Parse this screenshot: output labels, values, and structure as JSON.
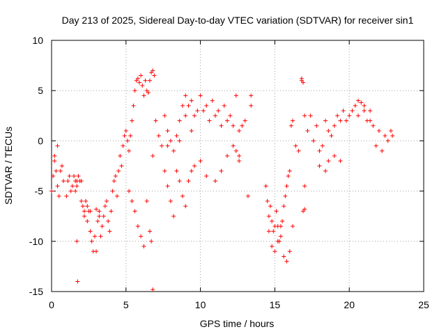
{
  "chart_data": {
    "type": "scatter",
    "title": "Day 213 of 2025, Sidereal Day-to-day VTEC variation (SDTVAR) for receiver sin1",
    "xlabel": "GPS time / hours",
    "ylabel": "SDTVAR / TECUs",
    "xlim": [
      0,
      25
    ],
    "ylim": [
      -15,
      10
    ],
    "xticks": [
      "0",
      "5",
      "10",
      "15",
      "20",
      "25"
    ],
    "yticks": [
      "-15",
      "-10",
      "-5",
      "0",
      "5",
      "10"
    ],
    "grid": true,
    "marker": "plus",
    "colors": {
      "marker": "#ff0000",
      "grid": "#a0a0a0",
      "axis": "#000000"
    },
    "series": [
      {
        "name": "sin1",
        "x": [
          0.0,
          0.1,
          0.2,
          0.3,
          0.4,
          0.5,
          0.6,
          0.7,
          0.8,
          1.0,
          1.1,
          1.2,
          1.3,
          1.4,
          1.5,
          1.6,
          1.7,
          1.8,
          1.9,
          2.0,
          2.1,
          2.2,
          2.3,
          2.4,
          2.5,
          2.6,
          2.7,
          2.8,
          2.9,
          3.0,
          3.1,
          3.2,
          3.3,
          3.4,
          3.5,
          3.6,
          3.7,
          3.8,
          3.9,
          4.0,
          4.1,
          4.2,
          4.3,
          4.4,
          4.5,
          4.6,
          4.7,
          4.8,
          4.9,
          5.0,
          5.1,
          5.2,
          5.3,
          5.4,
          5.5,
          5.6,
          5.7,
          5.8,
          5.9,
          6.0,
          6.1,
          6.2,
          6.3,
          6.4,
          6.5,
          6.6,
          6.7,
          6.8,
          6.9,
          7.0,
          7.2,
          7.4,
          7.6,
          7.8,
          8.0,
          8.2,
          8.4,
          8.6,
          8.8,
          9.0,
          9.2,
          9.4,
          9.6,
          9.8,
          10.0,
          10.2,
          10.4,
          10.6,
          10.8,
          11.0,
          11.2,
          11.4,
          11.6,
          11.8,
          12.0,
          12.2,
          12.4,
          12.6,
          12.8,
          13.0,
          13.4,
          14.4,
          14.5,
          14.6,
          14.7,
          14.8,
          14.9,
          15.0,
          15.1,
          15.2,
          15.3,
          15.4,
          15.5,
          15.6,
          15.7,
          15.8,
          15.9,
          16.0,
          16.1,
          16.2,
          16.4,
          16.6,
          16.8,
          16.9,
          17.0,
          17.2,
          17.4,
          17.6,
          17.8,
          18.0,
          18.2,
          18.4,
          18.6,
          18.8,
          19.0,
          19.2,
          19.4,
          19.6,
          19.8,
          20.0,
          20.2,
          20.4,
          20.6,
          20.8,
          21.0,
          21.2,
          21.4,
          21.6,
          21.8,
          22.0,
          22.2,
          22.4,
          22.6,
          22.8,
          22.9,
          0.2,
          0.4,
          1.6,
          1.7,
          2.0,
          2.2,
          2.4,
          2.6,
          3.0,
          3.2,
          5.2,
          5.4,
          5.6,
          5.8,
          6.0,
          6.2,
          6.4,
          6.6,
          6.7,
          6.8,
          7.6,
          7.8,
          8.0,
          8.2,
          8.4,
          8.6,
          8.8,
          9.0,
          9.2,
          9.4,
          9.6,
          10.0,
          10.4,
          11.0,
          11.4,
          11.8,
          12.2,
          12.6,
          13.2,
          13.4,
          14.6,
          14.8,
          15.0,
          15.2,
          15.4,
          15.6,
          15.8,
          16.0,
          16.2,
          16.8,
          16.9,
          17.0,
          18.0,
          18.4,
          18.6,
          19.0,
          19.4,
          20.6,
          21.0,
          21.4,
          1.7,
          1.75,
          6.8,
          17.0,
          12.4,
          12.6,
          9.0,
          9.4,
          8.6,
          7.8
        ],
        "y": [
          -5.0,
          -3.5,
          -2.0,
          -3.0,
          -4.5,
          -5.5,
          -3.0,
          -2.5,
          -4.0,
          -5.5,
          -4.0,
          -3.5,
          -5.0,
          -4.5,
          -3.5,
          -4.0,
          -4.5,
          -3.5,
          -4.0,
          -4.0,
          -6.5,
          -7.5,
          -6.0,
          -8.0,
          -7.0,
          -9.0,
          -10.0,
          -11.0,
          -9.5,
          -11.0,
          -8.0,
          -7.0,
          -9.5,
          -8.5,
          -7.5,
          -6.5,
          -6.0,
          -8.0,
          -9.0,
          -7.0,
          -5.0,
          -4.0,
          -3.5,
          -5.5,
          -3.0,
          -1.5,
          -2.5,
          -0.5,
          0.5,
          1.0,
          0.0,
          -1.0,
          0.5,
          2.0,
          3.5,
          5.0,
          6.0,
          6.2,
          5.8,
          6.5,
          5.5,
          4.5,
          6.0,
          5.0,
          4.8,
          6.0,
          6.8,
          7.0,
          6.5,
          2.0,
          0.5,
          -0.5,
          2.5,
          1.0,
          0.0,
          -1.0,
          0.5,
          2.0,
          3.5,
          4.5,
          3.5,
          4.0,
          2.5,
          3.0,
          4.5,
          3.0,
          3.5,
          2.0,
          4.0,
          2.5,
          3.0,
          1.5,
          3.5,
          2.0,
          2.5,
          1.5,
          4.5,
          1.0,
          1.5,
          2.0,
          4.5,
          -4.5,
          -6.0,
          -7.5,
          -6.5,
          -8.0,
          -9.0,
          -8.5,
          -7.0,
          -8.5,
          -10.0,
          -9.5,
          -8.0,
          -6.5,
          -5.5,
          -4.5,
          -3.5,
          -3.0,
          1.5,
          2.0,
          -0.5,
          -1.0,
          6.0,
          -7.0,
          -4.5,
          1.0,
          2.5,
          0.0,
          1.5,
          -1.0,
          -0.5,
          2.0,
          1.0,
          0.5,
          1.5,
          2.5,
          2.0,
          3.0,
          2.0,
          2.5,
          3.0,
          3.5,
          2.5,
          3.8,
          3.0,
          2.0,
          3.0,
          1.5,
          -0.5,
          1.0,
          -1.0,
          0.5,
          0.0,
          1.0,
          0.5,
          -1.5,
          -0.5,
          -5.0,
          -4.0,
          -6.0,
          -7.0,
          -6.5,
          -7.0,
          -6.8,
          -7.5,
          -5.0,
          -6.0,
          -7.0,
          -8.5,
          -9.5,
          -10.5,
          -6.0,
          -9.0,
          -10.0,
          -1.5,
          -3.0,
          -4.5,
          -6.0,
          -7.5,
          -3.0,
          -4.0,
          -5.5,
          -6.5,
          -4.0,
          -3.0,
          -2.5,
          -2.0,
          -3.5,
          -4.0,
          -3.0,
          -1.5,
          -0.5,
          -2.0,
          -5.5,
          3.5,
          -9.0,
          -10.5,
          -11.0,
          -10.0,
          -8.5,
          -11.5,
          -12.0,
          -11.0,
          -8.5,
          6.2,
          5.8,
          2.5,
          -2.5,
          -3.0,
          -2.0,
          -1.5,
          -2.0,
          4.0,
          3.5,
          2.0,
          -10.0,
          -14.0,
          -14.8,
          -6.8,
          -1.0,
          -1.5,
          2.5,
          1.0,
          0.0,
          -0.5
        ]
      }
    ]
  }
}
